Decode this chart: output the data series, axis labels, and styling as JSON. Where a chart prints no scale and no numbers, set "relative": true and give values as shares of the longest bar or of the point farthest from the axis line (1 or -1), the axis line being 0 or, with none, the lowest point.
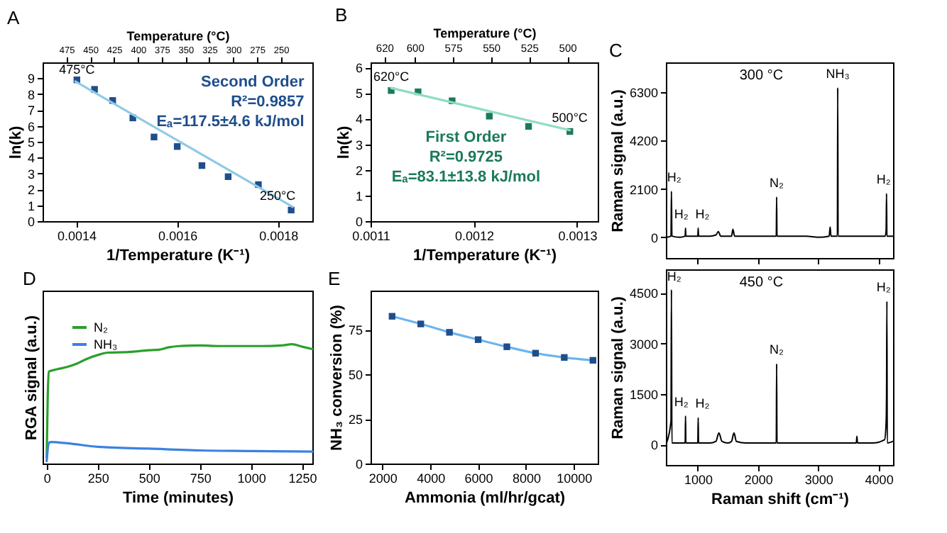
{
  "chart_data": [
    {
      "type": "scatter",
      "title": "A",
      "xlabel": "1/Temperature (K⁻¹)",
      "ylabel": "ln(k)",
      "x2label": "Temperature (°C)",
      "xlim": [
        0.001333,
        0.001868
      ],
      "xticks": [
        0.0014,
        0.0016,
        0.0018
      ],
      "ylim": [
        0,
        10
      ],
      "yticks": [
        0,
        1,
        2,
        3,
        4,
        5,
        6,
        7,
        8,
        9
      ],
      "x2lim": [
        500,
        217
      ],
      "x2ticks": [
        475,
        450,
        425,
        400,
        375,
        350,
        325,
        300,
        275,
        250
      ],
      "series": [
        {
          "type": "scatter",
          "marker": "square",
          "color": "#1f4e8c",
          "x": [
            0.001401,
            0.001436,
            0.001472,
            0.001512,
            0.001554,
            0.0016,
            0.001649,
            0.001701,
            0.001761,
            0.001826
          ],
          "values": [
            8.9,
            8.3,
            7.6,
            6.5,
            5.3,
            4.7,
            3.5,
            2.8,
            2.3,
            0.7
          ]
        },
        {
          "type": "line",
          "color": "#8ecae6",
          "x": [
            0.001398,
            0.001829
          ],
          "values": [
            8.8,
            0.9
          ]
        }
      ],
      "annotations": [
        "Second Order",
        "R²=0.9857",
        "Eₐ=117.5±4.6 kJ/mol",
        {
          "text": "475°C",
          "x": 0.001401,
          "y": 8.9
        },
        {
          "text": "250°C",
          "x": 0.001826,
          "y": 0.7
        }
      ]
    },
    {
      "type": "scatter",
      "title": "B",
      "xlabel": "1/Temperature (K⁻¹)",
      "ylabel": "ln(k)",
      "x2label": "Temperature (°C)",
      "xlim": [
        0.0011,
        0.00132
      ],
      "xticks": [
        0.0011,
        0.0012,
        0.0013
      ],
      "ylim": [
        0,
        6.2
      ],
      "yticks": [
        0,
        1,
        2,
        3,
        4,
        5,
        6
      ],
      "x2lim": [
        629,
        480
      ],
      "x2ticks": [
        620,
        600,
        575,
        550,
        525,
        500
      ],
      "series": [
        {
          "type": "scatter",
          "marker": "square",
          "color": "#1b7a5a",
          "x": [
            0.00112,
            0.001146,
            0.001179,
            0.001215,
            0.001253,
            0.001293
          ],
          "values": [
            5.1,
            5.05,
            4.7,
            4.1,
            3.7,
            3.5
          ]
        },
        {
          "type": "line",
          "color": "#8fdcc5",
          "x": [
            0.00112,
            0.001293
          ],
          "values": [
            5.2,
            3.55
          ]
        }
      ],
      "annotations": [
        "First Order",
        "R²=0.9725",
        "Eₐ=83.1±13.8 kJ/mol",
        {
          "text": "620°C",
          "x": 0.00112,
          "y": 5.1
        },
        {
          "text": "500°C",
          "x": 0.001293,
          "y": 3.5
        }
      ]
    },
    {
      "type": "line",
      "title": "C",
      "ylabel": "Raman signal (a.u.)",
      "tick_labels": "y",
      "xlim": [
        470,
        4240
      ],
      "xticks": [
        1000,
        2000,
        3000,
        4000
      ],
      "ylim": [
        -900,
        7600
      ],
      "yticks": [
        0,
        2100,
        4200,
        6300
      ],
      "series": [
        {
          "color": "#000000",
          "x": [
            480,
            555,
            562,
            570,
            700,
            790,
            796,
            802,
            950,
            1000,
            1006,
            1012,
            1200,
            1300,
            1340,
            1380,
            1500,
            1560,
            1582,
            1610,
            1800,
            2000,
            2290,
            2302,
            2308,
            2314,
            2500,
            2800,
            3000,
            3180,
            3196,
            3210,
            3300,
            3316,
            3322,
            3328,
            3500,
            3800,
            4000,
            4110,
            4125,
            4132,
            4138,
            4240
          ],
          "values": [
            0,
            50,
            2000,
            50,
            0,
            50,
            400,
            50,
            50,
            50,
            400,
            50,
            50,
            100,
            250,
            50,
            50,
            50,
            350,
            50,
            50,
            50,
            50,
            50,
            1750,
            50,
            50,
            50,
            0,
            50,
            450,
            50,
            50,
            50,
            6500,
            50,
            50,
            50,
            50,
            50,
            300,
            1900,
            50,
            50
          ]
        }
      ],
      "annotations": [
        "300 °C",
        {
          "text": "H₂",
          "x": 562,
          "y": 2000
        },
        {
          "text": "H₂",
          "x": 796,
          "y": 400
        },
        {
          "text": "H₂",
          "x": 1006,
          "y": 400
        },
        {
          "text": "N₂",
          "x": 2308,
          "y": 1750
        },
        {
          "text": "NH₃",
          "x": 3322,
          "y": 6500
        },
        {
          "text": "H₂",
          "x": 4132,
          "y": 1900
        }
      ]
    },
    {
      "type": "line",
      "title": "D",
      "xlabel": "Time (minutes)",
      "ylabel": "RGA signal (a.u.)",
      "relative": true,
      "legend": "top left",
      "xlim": [
        -20,
        1300
      ],
      "xticks": [
        0,
        250,
        500,
        750,
        1000,
        1250
      ],
      "series": [
        {
          "name": "N₂",
          "color": "#2aa02a",
          "x": [
            0,
            5,
            10,
            50,
            100,
            150,
            200,
            250,
            300,
            400,
            500,
            550,
            600,
            650,
            750,
            850,
            950,
            1050,
            1150,
            1200,
            1250,
            1300
          ],
          "values": [
            0.05,
            0.55,
            0.77,
            0.79,
            0.81,
            0.84,
            0.88,
            0.91,
            0.93,
            0.935,
            0.95,
            0.955,
            0.975,
            0.985,
            0.99,
            0.985,
            0.985,
            0.985,
            0.99,
            1.0,
            0.98,
            0.96
          ]
        },
        {
          "name": "NH₃",
          "color": "#3b82e0",
          "x": [
            0,
            10,
            20,
            100,
            250,
            500,
            750,
            1000,
            1300
          ],
          "values": [
            0.02,
            0.17,
            0.18,
            0.17,
            0.14,
            0.125,
            0.11,
            0.105,
            0.1
          ]
        }
      ]
    },
    {
      "type": "scatter",
      "title": "E",
      "xlabel": "Ammonia (ml/hr/gcat)",
      "ylabel": "NH₃ conversion (%)",
      "xlim": [
        1500,
        11000
      ],
      "xticks": [
        2000,
        4000,
        6000,
        8000,
        10000
      ],
      "ylim": [
        0,
        97
      ],
      "yticks": [
        0,
        25,
        50,
        75
      ],
      "x": [
        2400,
        3600,
        4800,
        6000,
        7200,
        8400,
        9600,
        10800
      ],
      "series": [
        {
          "type": "line",
          "color": "#6cb4ee",
          "values": [
            82.6,
            78.3,
            73.6,
            69.5,
            65.5,
            61.9,
            59.5,
            57.9
          ]
        },
        {
          "type": "scatter",
          "marker": "square",
          "color": "#1f4e8c",
          "values": [
            82.6,
            78.3,
            73.6,
            69.5,
            65.5,
            61.9,
            59.5,
            57.9
          ]
        }
      ]
    },
    {
      "type": "line",
      "xlabel": "Raman shift (cm⁻¹)",
      "ylabel": "Raman signal (a.u.)",
      "xlim": [
        470,
        4240
      ],
      "xticks": [
        1000,
        2000,
        3000,
        4000
      ],
      "ylim": [
        -600,
        5200
      ],
      "yticks": [
        0,
        1500,
        3000,
        4500
      ],
      "series": [
        {
          "color": "#000000",
          "x": [
            480,
            555,
            562,
            570,
            700,
            790,
            796,
            802,
            950,
            1000,
            1006,
            1012,
            1200,
            1300,
            1350,
            1400,
            1500,
            1560,
            1600,
            1640,
            1800,
            2000,
            2290,
            2302,
            2308,
            2314,
            2500,
            2800,
            3000,
            3400,
            3630,
            3640,
            3650,
            3900,
            4100,
            4125,
            4132,
            4138,
            4144,
            4240
          ],
          "values": [
            50,
            700,
            4600,
            50,
            50,
            50,
            850,
            50,
            50,
            50,
            800,
            50,
            50,
            100,
            350,
            100,
            50,
            100,
            350,
            100,
            50,
            50,
            50,
            50,
            2400,
            50,
            50,
            50,
            50,
            50,
            50,
            250,
            50,
            50,
            150,
            650,
            1500,
            4250,
            50,
            100
          ]
        }
      ],
      "annotations": [
        "450 °C",
        {
          "text": "H₂",
          "x": 562,
          "y": 4600
        },
        {
          "text": "H₂",
          "x": 796,
          "y": 850
        },
        {
          "text": "H₂",
          "x": 1006,
          "y": 800
        },
        {
          "text": "N₂",
          "x": 2308,
          "y": 2400
        },
        {
          "text": "H₂",
          "x": 4132,
          "y": 4250
        }
      ]
    }
  ]
}
